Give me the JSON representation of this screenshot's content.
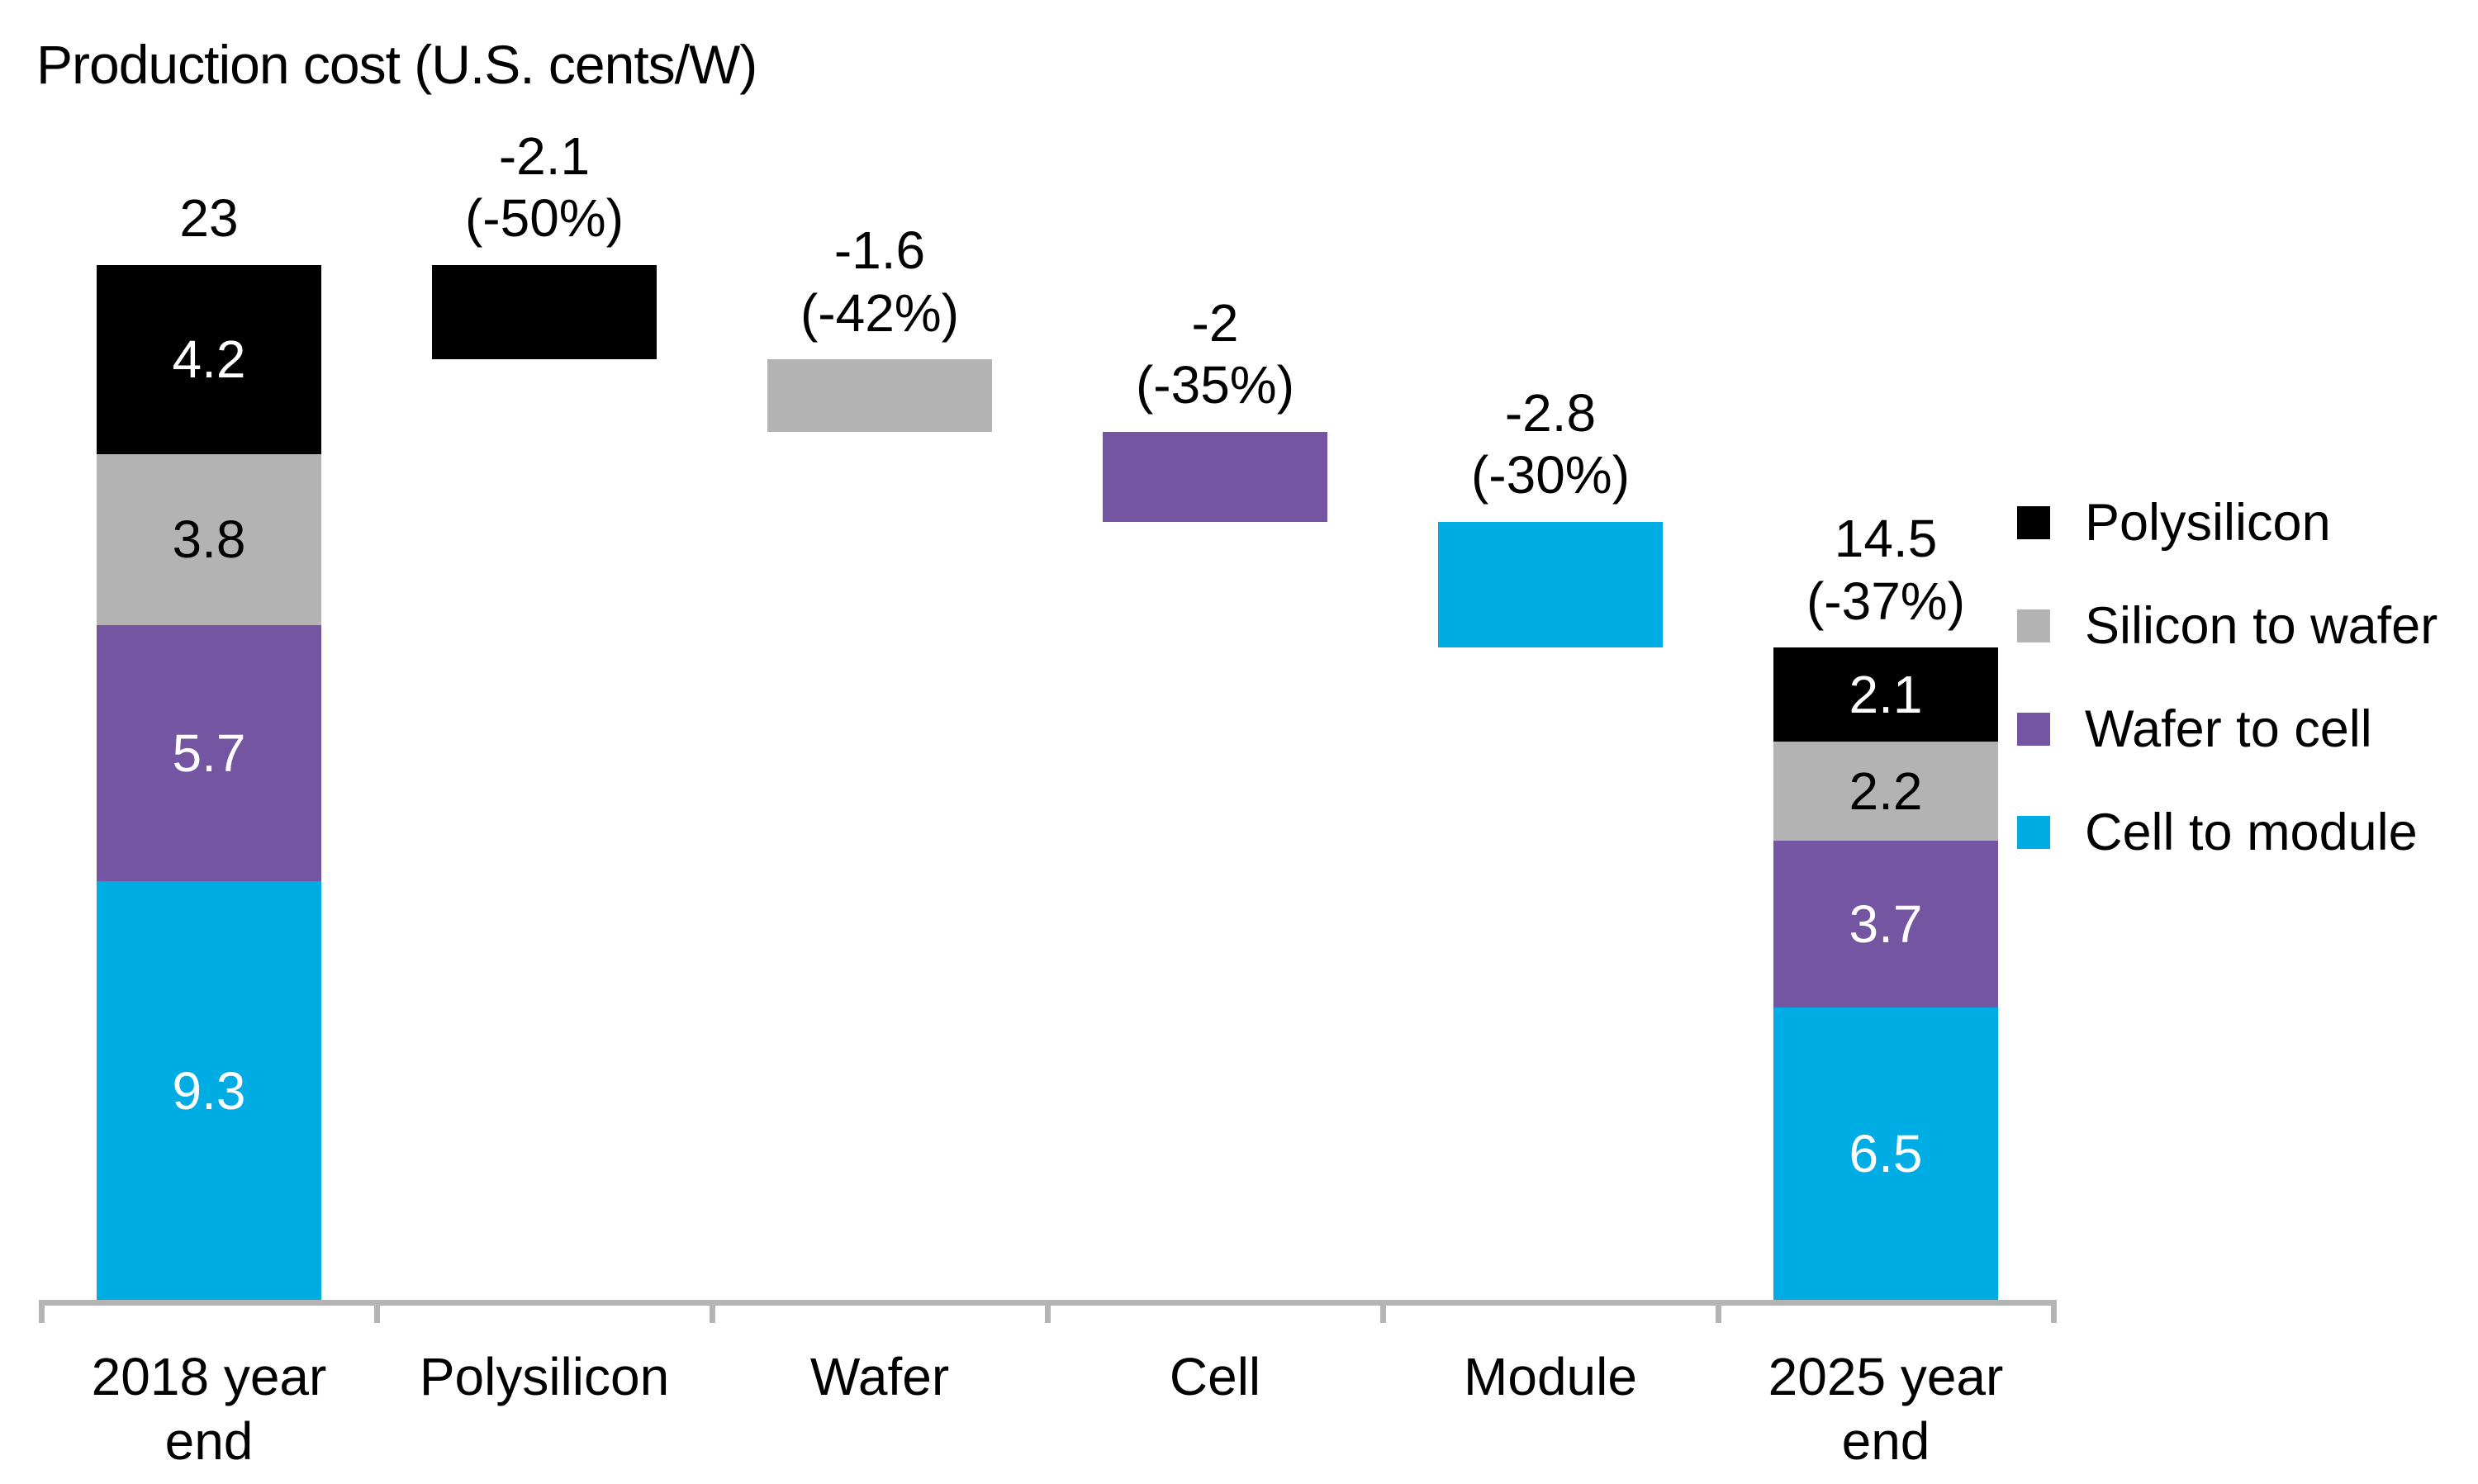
{
  "chart_data": {
    "type": "waterfall",
    "title": "Production cost (U.S. cents/W)",
    "value_unit": "U.S. cents/W",
    "ylim": [
      0,
      23
    ],
    "grid": false,
    "legend_position": "right",
    "axis_color": "#B4B4B4",
    "categories": [
      "2018 year\nend",
      "Polysilicon",
      "Wafer",
      "Cell",
      "Module",
      "2025 year\nend"
    ],
    "legend": [
      {
        "label": "Polysilicon",
        "color": "#000000"
      },
      {
        "label": "Silicon to wafer",
        "color": "#B3B3B3"
      },
      {
        "label": "Wafer to cell",
        "color": "#7355A2"
      },
      {
        "label": "Cell to module",
        "color": "#00ACE4"
      }
    ],
    "bars": [
      {
        "category": "2018 year\nend",
        "kind": "stack",
        "base": 0,
        "total": 23,
        "total_label": "23",
        "segments": [
          {
            "name": "Cell to module",
            "value": 9.3,
            "label": "9.3",
            "color": "#00ACE4",
            "text_color": "#FFFFFF"
          },
          {
            "name": "Wafer to cell",
            "value": 5.7,
            "label": "5.7",
            "color": "#7355A2",
            "text_color": "#FFFFFF"
          },
          {
            "name": "Silicon to wafer",
            "value": 3.8,
            "label": "3.8",
            "color": "#B3B3B3",
            "text_color": "#000000"
          },
          {
            "name": "Polysilicon",
            "value": 4.2,
            "label": "4.2",
            "color": "#000000",
            "text_color": "#FFFFFF"
          }
        ]
      },
      {
        "category": "Polysilicon",
        "kind": "delta",
        "from": 23,
        "to": 20.9,
        "value": -2.1,
        "pct": -50,
        "label": "-2.1\n(-50%)",
        "color": "#000000"
      },
      {
        "category": "Wafer",
        "kind": "delta",
        "from": 20.9,
        "to": 19.3,
        "value": -1.6,
        "pct": -42,
        "label": "-1.6\n(-42%)",
        "color": "#B3B3B3"
      },
      {
        "category": "Cell",
        "kind": "delta",
        "from": 19.3,
        "to": 17.3,
        "value": -2,
        "pct": -35,
        "label": "-2\n(-35%)",
        "color": "#7355A2"
      },
      {
        "category": "Module",
        "kind": "delta",
        "from": 17.3,
        "to": 14.5,
        "value": -2.8,
        "pct": -30,
        "label": "-2.8\n(-30%)",
        "color": "#00ACE4"
      },
      {
        "category": "2025 year\nend",
        "kind": "stack",
        "base": 0,
        "total": 14.5,
        "total_label": "14.5\n(-37%)",
        "segments": [
          {
            "name": "Cell to module",
            "value": 6.5,
            "label": "6.5",
            "color": "#00ACE4",
            "text_color": "#FFFFFF"
          },
          {
            "name": "Wafer to cell",
            "value": 3.7,
            "label": "3.7",
            "color": "#7355A2",
            "text_color": "#FFFFFF"
          },
          {
            "name": "Silicon to wafer",
            "value": 2.2,
            "label": "2.2",
            "color": "#B3B3B3",
            "text_color": "#000000"
          },
          {
            "name": "Polysilicon",
            "value": 2.1,
            "label": "2.1",
            "color": "#000000",
            "text_color": "#FFFFFF"
          }
        ]
      }
    ]
  }
}
